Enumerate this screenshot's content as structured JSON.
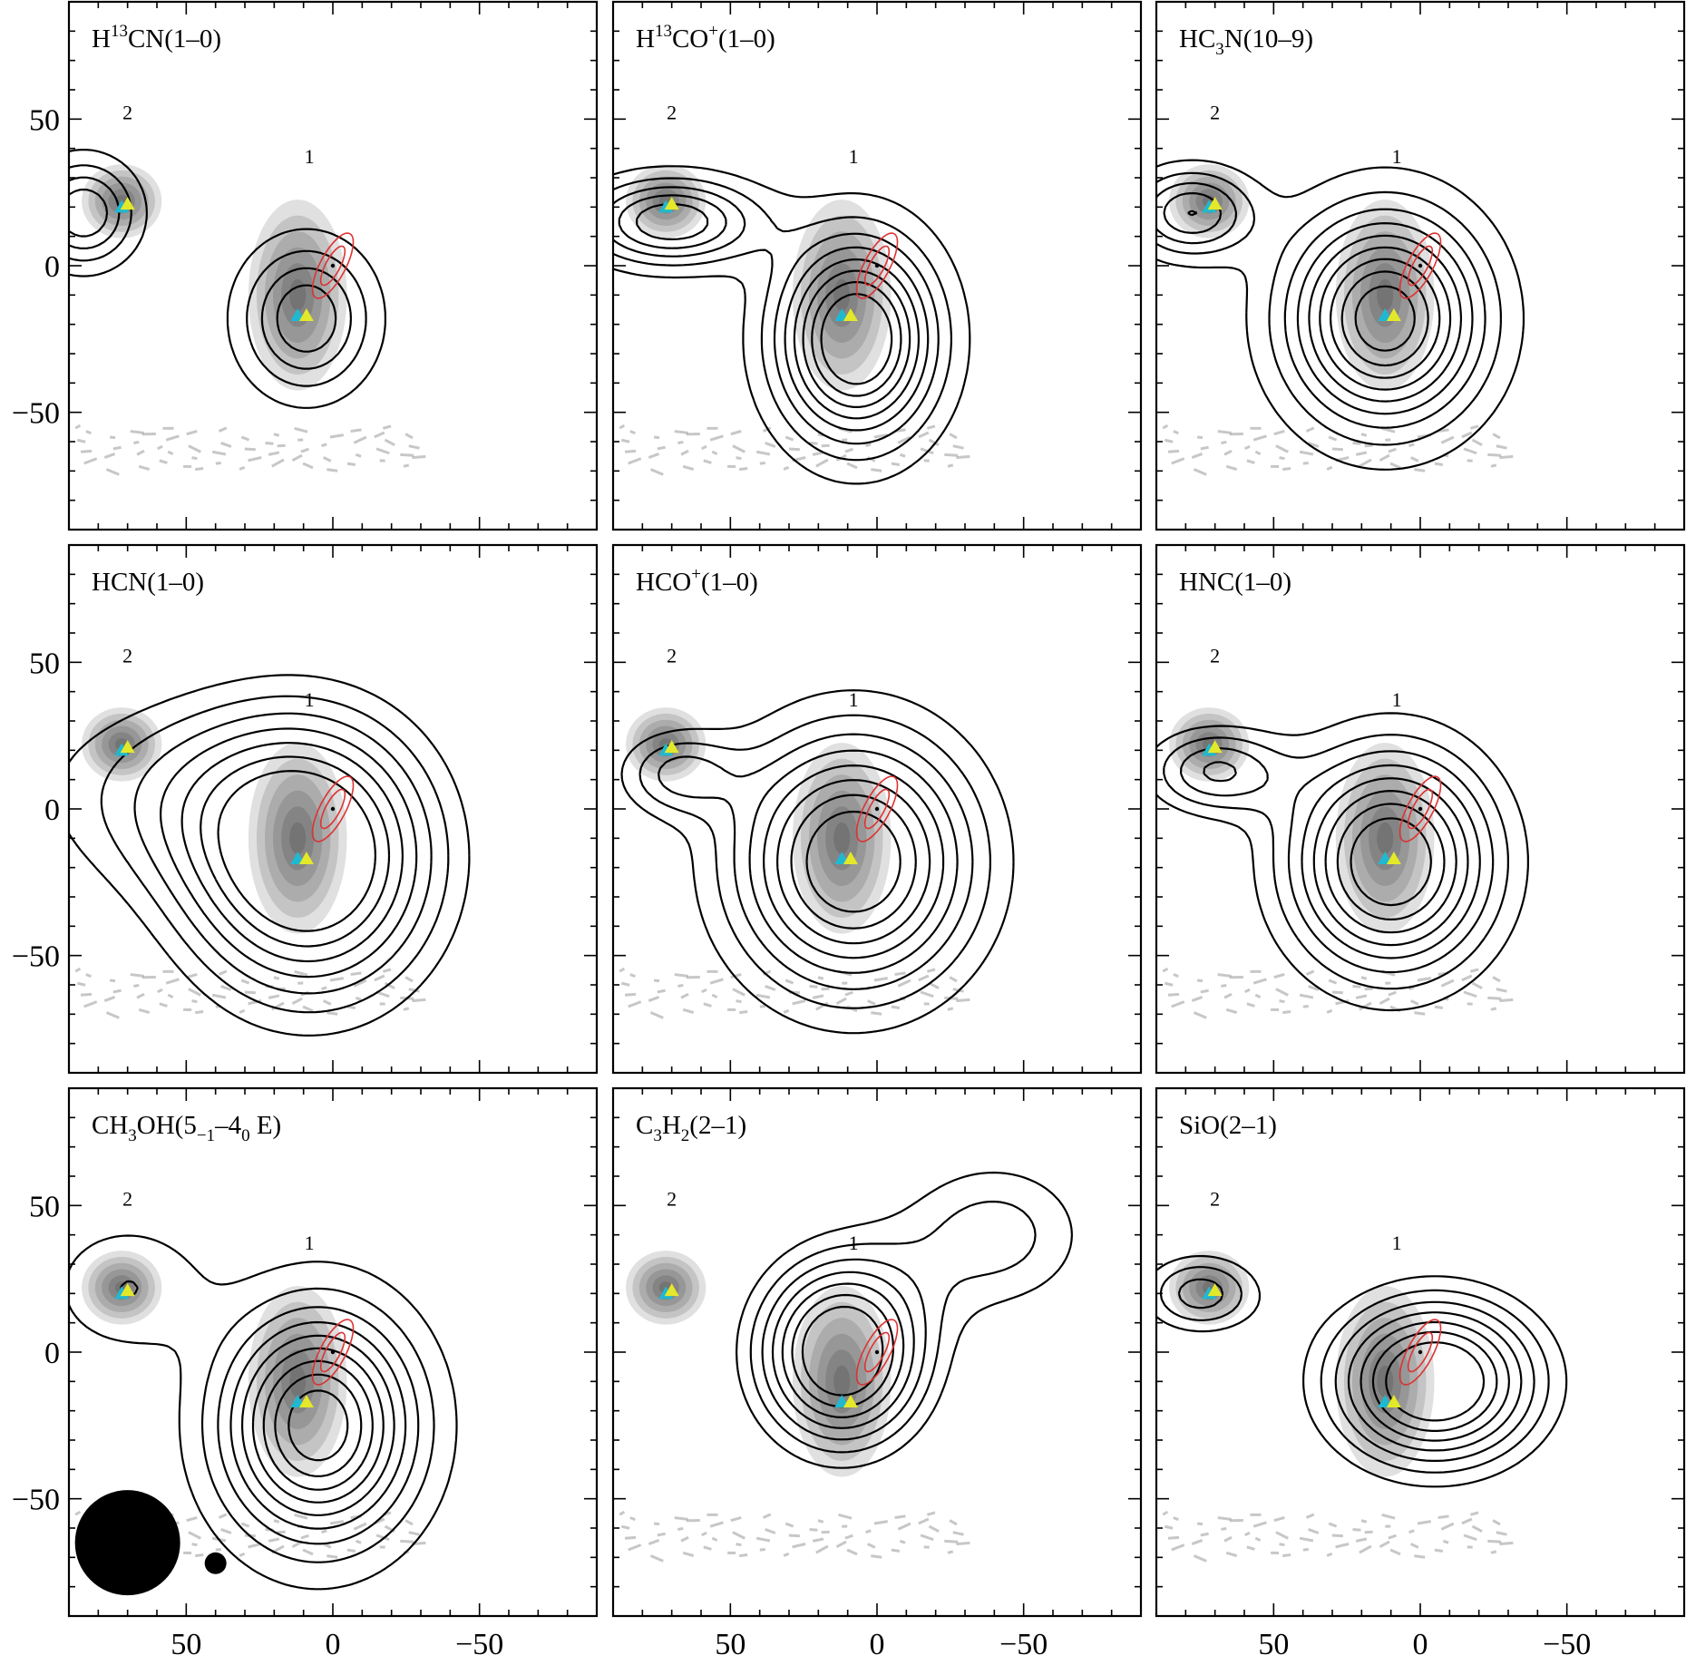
{
  "chart_data": {
    "type": "contour",
    "layout": "3x3 grid of contour maps over greyscale continuum",
    "xlim": [
      90,
      -90
    ],
    "ylim": [
      -90,
      90
    ],
    "xticks": [
      50,
      0,
      -50
    ],
    "yticks": [
      50,
      0,
      -50
    ],
    "tick_labels": {
      "x": [
        "50",
        "0",
        "−50"
      ],
      "y": [
        "50",
        "0",
        "−50"
      ]
    },
    "source_labels": [
      {
        "name": "1",
        "x": 8,
        "y": 35
      },
      {
        "name": "2",
        "x": 70,
        "y": 50
      }
    ],
    "markers": [
      {
        "kind": "triangle",
        "color": "#20b8d0",
        "x": 72,
        "y": 20
      },
      {
        "kind": "triangle",
        "color": "#e4e82a",
        "x": 70,
        "y": 21
      },
      {
        "kind": "triangle",
        "color": "#20b8d0",
        "x": 12,
        "y": -17
      },
      {
        "kind": "triangle",
        "color": "#e4e82a",
        "x": 9,
        "y": -17
      }
    ],
    "continuum_peaks": [
      {
        "x": 72,
        "y": 22,
        "rx": 13,
        "ry": 12
      },
      {
        "x": 12,
        "y": -10,
        "rx": 16,
        "ry": 31
      }
    ],
    "outflow_ellipse": {
      "x": 0,
      "y": 0,
      "color": "#d33333"
    },
    "beam_markers": [
      {
        "size": "large",
        "x": 70,
        "y": -65
      },
      {
        "size": "small",
        "x": 40,
        "y": -72
      }
    ],
    "panels": [
      {
        "name": "H13CN(1–0)",
        "label": {
          "a": "H",
          "sup": "13",
          "b": "CN(1–0)"
        },
        "peaks": [
          {
            "x": 9,
            "y": -18,
            "a": 1.0,
            "sx": 15,
            "sy": 17
          },
          {
            "x": 85,
            "y": 18,
            "a": 1.0,
            "sx": 12,
            "sy": 12
          }
        ],
        "levels": [
          0.2,
          0.4,
          0.6,
          0.8
        ]
      },
      {
        "name": "H13CO+(1–0)",
        "label": {
          "a": "H",
          "sup": "13",
          "b": "CO",
          "sup2": "+",
          "c": "(1–0)"
        },
        "peaks": [
          {
            "x": 7,
            "y": -25,
            "a": 1.0,
            "sx": 18,
            "sy": 23
          },
          {
            "x": 70,
            "y": 15,
            "a": 0.6,
            "sx": 20,
            "sy": 10
          }
        ],
        "levels": [
          0.1,
          0.2,
          0.3,
          0.4,
          0.5,
          0.6,
          0.7,
          0.8
        ]
      },
      {
        "name": "HC3N(10–9)",
        "label": {
          "a": "HC",
          "sub": "3",
          "b": "N(10–9)"
        },
        "peaks": [
          {
            "x": 12,
            "y": -18,
            "a": 1.0,
            "sx": 22,
            "sy": 24
          },
          {
            "x": 78,
            "y": 18,
            "a": 0.5,
            "sx": 14,
            "sy": 10
          }
        ],
        "levels": [
          0.1,
          0.2,
          0.3,
          0.4,
          0.5,
          0.6,
          0.7,
          0.8,
          0.9
        ]
      },
      {
        "name": "HCN(1–0)",
        "label": {
          "a": "HCN(1–0)"
        },
        "peaks": [
          {
            "x": 8,
            "y": -18,
            "a": 1.0,
            "sx": 30,
            "sy": 33
          },
          {
            "x": 55,
            "y": 5,
            "a": 0.3,
            "sx": 40,
            "sy": 25
          }
        ],
        "levels": [
          0.2,
          0.3,
          0.4,
          0.5,
          0.6,
          0.7,
          0.8
        ]
      },
      {
        "name": "HCO+(1–0)",
        "label": {
          "a": "HCO",
          "sup": "+",
          "b": "(1–0)"
        },
        "peaks": [
          {
            "x": 8,
            "y": -18,
            "a": 1.0,
            "sx": 28,
            "sy": 30
          },
          {
            "x": 68,
            "y": 12,
            "a": 0.35,
            "sx": 14,
            "sy": 10
          }
        ],
        "levels": [
          0.15,
          0.25,
          0.35,
          0.45,
          0.55,
          0.65,
          0.75,
          0.85
        ]
      },
      {
        "name": "HNC(1–0)",
        "label": {
          "a": "HNC(1–0)"
        },
        "peaks": [
          {
            "x": 10,
            "y": -18,
            "a": 1.0,
            "sx": 24,
            "sy": 26
          },
          {
            "x": 70,
            "y": 13,
            "a": 0.45,
            "sx": 16,
            "sy": 10
          }
        ],
        "levels": [
          0.15,
          0.25,
          0.35,
          0.45,
          0.55,
          0.65,
          0.75,
          0.85
        ]
      },
      {
        "name": "CH3OH(5−1–40 E)",
        "label": {
          "a": "CH",
          "sub": "3",
          "b": "OH(5",
          "sub2": "−1",
          "c": "–4",
          "sub3": "0",
          "d": " E)"
        },
        "peaks": [
          {
            "x": 5,
            "y": -25,
            "a": 1.0,
            "sx": 22,
            "sy": 26
          },
          {
            "x": 70,
            "y": 22,
            "a": 0.2,
            "sx": 18,
            "sy": 15
          }
        ],
        "levels": [
          0.1,
          0.2,
          0.3,
          0.4,
          0.5,
          0.6,
          0.7,
          0.8,
          0.9
        ]
      },
      {
        "name": "C3H2(2–1)",
        "label": {
          "a": "C",
          "sub": "3",
          "b": "H",
          "sub2": "2",
          "c": "(2–1)"
        },
        "peaks": [
          {
            "x": 12,
            "y": 0,
            "a": 1.0,
            "sx": 20,
            "sy": 22
          },
          {
            "x": -40,
            "y": 40,
            "a": 0.35,
            "sx": 25,
            "sy": 20
          }
        ],
        "levels": [
          0.2,
          0.3,
          0.4,
          0.5,
          0.6,
          0.7,
          0.8
        ]
      },
      {
        "name": "SiO(2–1)",
        "label": {
          "a": "SiO(2–1)"
        },
        "peaks": [
          {
            "x": -5,
            "y": -10,
            "a": 1.0,
            "sx": 25,
            "sy": 20
          },
          {
            "x": 75,
            "y": 20,
            "a": 0.45,
            "sx": 15,
            "sy": 10
          }
        ],
        "levels": [
          0.2,
          0.3,
          0.4,
          0.5,
          0.6,
          0.7,
          0.8
        ]
      }
    ]
  }
}
